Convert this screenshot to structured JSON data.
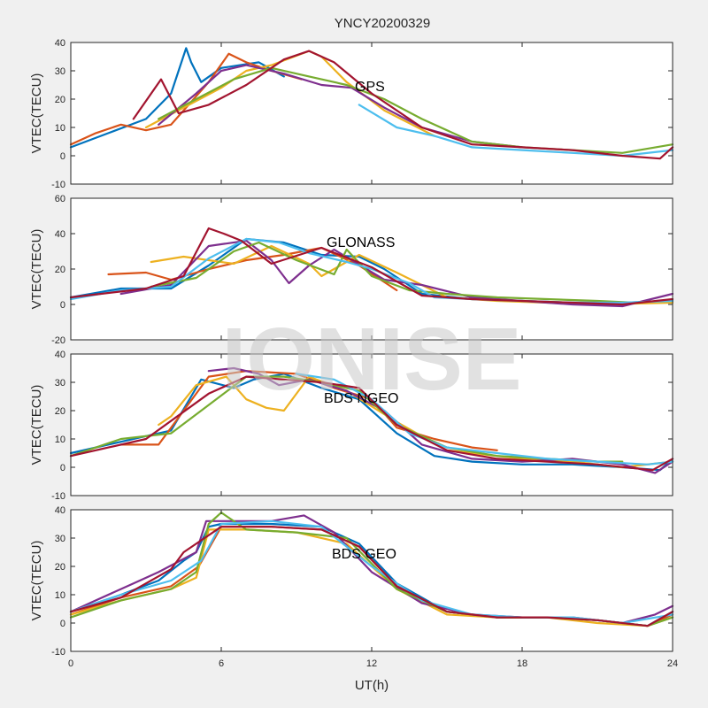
{
  "figure": {
    "title": "YNCY20200329",
    "watermark": "IONISE",
    "xlabel": "UT(h)",
    "background": "#f0f0f0"
  },
  "chart_data": [
    {
      "type": "line",
      "annotation": "GPS",
      "ylabel": "VTEC(TECU)",
      "xlim": [
        0,
        24
      ],
      "ylim": [
        -10,
        40
      ],
      "xticks": [
        "0",
        "6",
        "12",
        "18",
        "24"
      ],
      "yticks": [
        "-10",
        "0",
        "10",
        "20",
        "30",
        "40"
      ],
      "grid": false,
      "series": [
        {
          "color": "#0072BD",
          "x": [
            0,
            1.5,
            3,
            4,
            4.6,
            4.8,
            5.2,
            6,
            7.5,
            8.5
          ],
          "y": [
            3,
            8,
            13,
            22,
            38,
            33,
            26,
            31,
            33,
            28
          ]
        },
        {
          "color": "#D95319",
          "x": [
            0,
            1,
            2,
            3,
            4,
            5.5,
            6.3,
            7,
            8,
            9.2
          ],
          "y": [
            4,
            8,
            11,
            9,
            11,
            26,
            36,
            33,
            30,
            27
          ]
        },
        {
          "color": "#EDB120",
          "x": [
            3,
            4.5,
            6,
            7,
            8,
            9.5,
            10,
            11,
            12.5,
            14.5
          ],
          "y": [
            10,
            17,
            24,
            30,
            32,
            37,
            35,
            26,
            16,
            7
          ]
        },
        {
          "color": "#7E2F8E",
          "x": [
            3.5,
            5,
            6,
            7,
            8.5,
            10,
            11.2,
            12.5,
            14,
            16,
            18
          ],
          "y": [
            11,
            22,
            30,
            32,
            29,
            25,
            24,
            17,
            10,
            5,
            3
          ]
        },
        {
          "color": "#77AC30",
          "x": [
            3.5,
            5,
            6.5,
            8,
            9.5,
            11,
            12.5,
            14,
            16,
            18,
            20,
            22,
            24
          ],
          "y": [
            13,
            20,
            27,
            31,
            28,
            25,
            20,
            13,
            5,
            3,
            2,
            1,
            4
          ]
        },
        {
          "color": "#4DBEEE",
          "x": [
            11.5,
            13,
            14.5,
            16,
            18,
            20,
            22,
            24
          ],
          "y": [
            18,
            10,
            7,
            3,
            2,
            1,
            0,
            2
          ]
        },
        {
          "color": "#A2142F",
          "x": [
            2.5,
            3.6,
            4.3,
            5.5,
            7,
            8.5,
            9.5,
            10.5,
            12,
            14,
            16,
            18,
            20,
            22,
            23.5,
            24
          ],
          "y": [
            13,
            27,
            15,
            18,
            25,
            34,
            37,
            33,
            22,
            10,
            4,
            3,
            2,
            0,
            -1,
            3
          ]
        }
      ]
    },
    {
      "type": "line",
      "annotation": "GLONASS",
      "ylabel": "VTEC(TECU)",
      "xlim": [
        0,
        24
      ],
      "ylim": [
        -20,
        60
      ],
      "xticks": [
        "0",
        "6",
        "12",
        "18",
        "24"
      ],
      "yticks": [
        "-20",
        "0",
        "20",
        "40",
        "60"
      ],
      "grid": false,
      "series": [
        {
          "color": "#0072BD",
          "x": [
            0,
            2,
            4,
            5.5,
            7,
            8.5,
            10,
            11.5,
            12.5,
            14,
            16,
            18,
            20,
            22,
            24
          ],
          "y": [
            4,
            9,
            9,
            22,
            37,
            35,
            28,
            27,
            20,
            6,
            3,
            2,
            1,
            1,
            2
          ]
        },
        {
          "color": "#D95319",
          "x": [
            1.5,
            3,
            4,
            5.5,
            7,
            8.5,
            10,
            11.5,
            13
          ],
          "y": [
            17,
            18,
            14,
            20,
            25,
            28,
            32,
            22,
            8
          ]
        },
        {
          "color": "#EDB120",
          "x": [
            3.2,
            4.5,
            6.5,
            8,
            9.5,
            10,
            11.5,
            13,
            15,
            17,
            19,
            21,
            24
          ],
          "y": [
            24,
            27,
            23,
            33,
            23,
            16,
            28,
            18,
            4,
            2,
            1,
            0,
            1
          ]
        },
        {
          "color": "#7E2F8E",
          "x": [
            2,
            4,
            5.5,
            7,
            8,
            8.7,
            9.5,
            10.5,
            12.5,
            14,
            16,
            18,
            20,
            22,
            24
          ],
          "y": [
            6,
            11,
            33,
            36,
            25,
            12,
            22,
            31,
            14,
            11,
            4,
            2,
            0,
            -1,
            6
          ]
        },
        {
          "color": "#77AC30",
          "x": [
            3.2,
            5,
            6.5,
            7.5,
            9,
            10.5,
            11,
            12,
            13.5,
            15,
            17,
            19,
            21,
            22.5
          ],
          "y": [
            10,
            15,
            30,
            35,
            25,
            17,
            31,
            16,
            8,
            6,
            4,
            3,
            2,
            1
          ]
        },
        {
          "color": "#4DBEEE",
          "x": [
            0,
            2,
            4,
            5.5,
            7,
            8.3,
            9.5,
            11,
            12,
            13.5,
            14.5,
            16,
            18,
            20,
            22,
            24
          ],
          "y": [
            3,
            8,
            10,
            26,
            37,
            35,
            29,
            24,
            20,
            12,
            4,
            3,
            2,
            1,
            1,
            2
          ]
        },
        {
          "color": "#A2142F",
          "x": [
            0,
            3,
            4.5,
            5.5,
            6.1,
            6.8,
            8,
            10,
            12,
            14,
            16,
            18,
            20,
            22,
            24
          ],
          "y": [
            4,
            9,
            16,
            43,
            40,
            36,
            23,
            32,
            21,
            5,
            3,
            2,
            1,
            0,
            3
          ]
        }
      ]
    },
    {
      "type": "line",
      "annotation": "BDS NGEO",
      "ylabel": "VTEC(TECU)",
      "xlim": [
        0,
        24
      ],
      "ylim": [
        -10,
        40
      ],
      "xticks": [
        "0",
        "6",
        "12",
        "18",
        "24"
      ],
      "yticks": [
        "-10",
        "0",
        "10",
        "20",
        "30",
        "40"
      ],
      "grid": false,
      "series": [
        {
          "color": "#0072BD",
          "x": [
            0,
            2,
            4,
            5.2,
            6.5,
            7.3,
            8.5,
            10,
            11.5,
            13,
            14.5,
            16,
            18,
            20,
            22,
            23.5,
            24
          ],
          "y": [
            5,
            9,
            13,
            31,
            28,
            31,
            33,
            28,
            24,
            12,
            4,
            2,
            1,
            1,
            0,
            -1,
            3
          ]
        },
        {
          "color": "#D95319",
          "x": [
            2,
            3.5,
            5.5,
            7,
            9,
            10.5,
            12,
            13,
            14.5,
            16,
            17
          ],
          "y": [
            8,
            8,
            32,
            34,
            33,
            28,
            24,
            14,
            10,
            7,
            6
          ]
        },
        {
          "color": "#EDB120",
          "x": [
            3.5,
            4,
            5,
            6.2,
            7,
            7.8,
            8.5,
            9.5,
            11,
            13,
            15,
            18,
            20,
            22,
            24
          ],
          "y": [
            15,
            18,
            29,
            32,
            24,
            21,
            20,
            32,
            27,
            16,
            6,
            3,
            2,
            0,
            2
          ]
        },
        {
          "color": "#7E2F8E",
          "x": [
            5.5,
            6.5,
            7.5,
            8.3,
            9.5,
            11,
            12.5,
            14,
            16,
            18,
            20,
            22,
            23.3,
            24
          ],
          "y": [
            34,
            35,
            33,
            29,
            31,
            27,
            20,
            8,
            3,
            2,
            3,
            1,
            -2,
            2
          ]
        },
        {
          "color": "#77AC30",
          "x": [
            0,
            2,
            4,
            5.5,
            7,
            8.5,
            10,
            11.5,
            13,
            15,
            17,
            19,
            21,
            22
          ],
          "y": [
            4,
            10,
            12,
            22,
            32,
            32,
            30,
            27,
            15,
            7,
            4,
            3,
            2,
            2
          ]
        },
        {
          "color": "#4DBEEE",
          "x": [
            9,
            10.5,
            12,
            13.5,
            15,
            17,
            19,
            21,
            23,
            24
          ],
          "y": [
            33,
            31,
            24,
            12,
            7,
            5,
            3,
            2,
            1,
            2
          ]
        },
        {
          "color": "#A2142F",
          "x": [
            0,
            1.5,
            3,
            5.5,
            7,
            8.5,
            10,
            11.5,
            13,
            15,
            17,
            19,
            21,
            23.2,
            24
          ],
          "y": [
            4,
            7,
            10,
            26,
            32,
            31,
            30,
            28,
            15,
            6,
            3,
            2,
            1,
            -1,
            3
          ]
        }
      ]
    },
    {
      "type": "line",
      "annotation": "BDS GEO",
      "ylabel": "VTEC(TECU)",
      "xlim": [
        0,
        24
      ],
      "ylim": [
        -10,
        40
      ],
      "xticks": [
        "0",
        "6",
        "12",
        "18",
        "24"
      ],
      "yticks": [
        "-10",
        "0",
        "10",
        "20",
        "30",
        "40"
      ],
      "grid": false,
      "series": [
        {
          "color": "#0072BD",
          "x": [
            0,
            2,
            3.5,
            4.5,
            5,
            5.5,
            6,
            8,
            10,
            11.5,
            13,
            15,
            17,
            19,
            21,
            23,
            24
          ],
          "y": [
            4,
            10,
            15,
            22,
            25,
            34,
            35,
            35,
            34,
            28,
            14,
            4,
            2,
            2,
            1,
            -1,
            4
          ]
        },
        {
          "color": "#D95319",
          "x": [
            0,
            2,
            4,
            5.1,
            6,
            8,
            10,
            11.5,
            13,
            15,
            17,
            19,
            21,
            23,
            24
          ],
          "y": [
            3,
            9,
            13,
            20,
            34,
            34,
            33,
            27,
            13,
            4,
            2,
            2,
            1,
            -1,
            3
          ]
        },
        {
          "color": "#EDB120",
          "x": [
            0,
            2,
            4,
            5,
            5.5,
            7,
            9,
            11,
            13,
            15,
            17,
            19,
            21,
            23,
            24
          ],
          "y": [
            3,
            8,
            12,
            16,
            33,
            33,
            32,
            28,
            12,
            3,
            2,
            2,
            0,
            -1,
            2
          ]
        },
        {
          "color": "#7E2F8E",
          "x": [
            0,
            1,
            2.5,
            3.5,
            5,
            5.4,
            6,
            8,
            9.3,
            10.5,
            12,
            14,
            16,
            18,
            20,
            22,
            23.3,
            24
          ],
          "y": [
            4,
            8,
            14,
            18,
            25,
            36,
            36,
            36,
            38,
            32,
            18,
            7,
            3,
            2,
            2,
            0,
            3,
            6
          ]
        },
        {
          "color": "#77AC30",
          "x": [
            0,
            2,
            4,
            5,
            5.5,
            6,
            7,
            9,
            11,
            13,
            15,
            17,
            19,
            21,
            23,
            24
          ],
          "y": [
            2,
            8,
            12,
            18,
            35,
            39,
            33,
            32,
            30,
            12,
            4,
            2,
            2,
            1,
            -1,
            2
          ]
        },
        {
          "color": "#4DBEEE",
          "x": [
            0,
            2,
            4,
            5.2,
            6,
            8,
            10,
            12,
            14,
            16,
            18,
            20,
            22,
            24
          ],
          "y": [
            4,
            10,
            15,
            22,
            35,
            36,
            34,
            20,
            8,
            3,
            2,
            2,
            0,
            3
          ]
        },
        {
          "color": "#A2142F",
          "x": [
            0,
            2,
            3,
            4,
            4.5,
            5,
            6,
            8,
            10,
            11.5,
            13,
            15,
            17,
            19,
            21,
            23,
            24
          ],
          "y": [
            4,
            9,
            14,
            19,
            25,
            28,
            34,
            34,
            33,
            27,
            13,
            4,
            2,
            2,
            1,
            -1,
            4
          ]
        }
      ]
    }
  ]
}
